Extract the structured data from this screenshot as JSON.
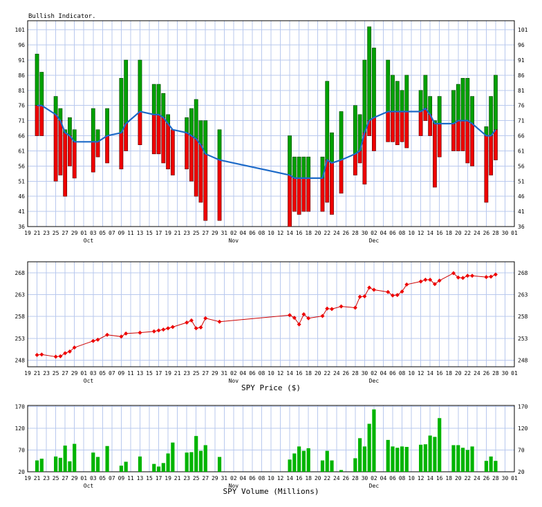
{
  "chart_data": [
    {
      "type": "bar",
      "title": "Bullish Indicator.",
      "ylim": [
        36,
        104
      ],
      "yticks": [
        36,
        41,
        46,
        51,
        56,
        61,
        66,
        71,
        76,
        81,
        86,
        91,
        96,
        101
      ],
      "x_tick_labels": [
        "19",
        "21",
        "23",
        "25",
        "27",
        "29",
        "01",
        "03",
        "05",
        "07",
        "09",
        "11",
        "13",
        "15",
        "17",
        "19",
        "21",
        "23",
        "25",
        "27",
        "29",
        "31",
        "02",
        "04",
        "06",
        "08",
        "10",
        "12",
        "14",
        "16",
        "18",
        "20",
        "22",
        "24",
        "26",
        "28",
        "30",
        "02",
        "04",
        "06",
        "08",
        "10",
        "12",
        "14",
        "16",
        "18",
        "20",
        "22",
        "24",
        "26",
        "28",
        "30",
        "01"
      ],
      "month_labels": [
        {
          "label": "Oct",
          "day": 13
        },
        {
          "label": "Nov",
          "day": 44
        },
        {
          "label": "Dec",
          "day": 74
        }
      ],
      "series": [
        {
          "name": "bars",
          "values": [
            {
              "d": 2,
              "lo": 66,
              "hi": 93
            },
            {
              "d": 3,
              "lo": 66,
              "hi": 87
            },
            {
              "d": 6,
              "lo": 51,
              "hi": 79
            },
            {
              "d": 7,
              "lo": 53,
              "hi": 75
            },
            {
              "d": 8,
              "lo": 46,
              "hi": 68
            },
            {
              "d": 9,
              "lo": 56,
              "hi": 72
            },
            {
              "d": 10,
              "lo": 52,
              "hi": 68
            },
            {
              "d": 14,
              "lo": 54,
              "hi": 75
            },
            {
              "d": 15,
              "lo": 59,
              "hi": 68
            },
            {
              "d": 17,
              "lo": 57,
              "hi": 75
            },
            {
              "d": 20,
              "lo": 55,
              "hi": 85
            },
            {
              "d": 21,
              "lo": 61,
              "hi": 91
            },
            {
              "d": 24,
              "lo": 63,
              "hi": 91
            },
            {
              "d": 27,
              "lo": 60,
              "hi": 83
            },
            {
              "d": 28,
              "lo": 60,
              "hi": 83
            },
            {
              "d": 29,
              "lo": 57,
              "hi": 80
            },
            {
              "d": 30,
              "lo": 55,
              "hi": 73
            },
            {
              "d": 31,
              "lo": 53,
              "hi": 68
            },
            {
              "d": 34,
              "lo": 55,
              "hi": 72
            },
            {
              "d": 35,
              "lo": 51,
              "hi": 75
            },
            {
              "d": 36,
              "lo": 46,
              "hi": 78
            },
            {
              "d": 37,
              "lo": 44,
              "hi": 71
            },
            {
              "d": 38,
              "lo": 38,
              "hi": 71
            },
            {
              "d": 41,
              "lo": 38,
              "hi": 68
            },
            {
              "d": 56,
              "lo": 36,
              "hi": 66
            },
            {
              "d": 57,
              "lo": 41,
              "hi": 59
            },
            {
              "d": 58,
              "lo": 40,
              "hi": 59
            },
            {
              "d": 59,
              "lo": 41,
              "hi": 59
            },
            {
              "d": 60,
              "lo": 41,
              "hi": 59
            },
            {
              "d": 63,
              "lo": 41,
              "hi": 59
            },
            {
              "d": 64,
              "lo": 44,
              "hi": 84
            },
            {
              "d": 65,
              "lo": 40,
              "hi": 67
            },
            {
              "d": 67,
              "lo": 47,
              "hi": 74
            },
            {
              "d": 70,
              "lo": 53,
              "hi": 76
            },
            {
              "d": 71,
              "lo": 57,
              "hi": 73
            },
            {
              "d": 72,
              "lo": 50,
              "hi": 91
            },
            {
              "d": 73,
              "lo": 66,
              "hi": 102
            },
            {
              "d": 74,
              "lo": 61,
              "hi": 95
            },
            {
              "d": 77,
              "lo": 64,
              "hi": 91
            },
            {
              "d": 78,
              "lo": 64,
              "hi": 86
            },
            {
              "d": 79,
              "lo": 63,
              "hi": 84
            },
            {
              "d": 80,
              "lo": 64,
              "hi": 81
            },
            {
              "d": 81,
              "lo": 62,
              "hi": 86
            },
            {
              "d": 84,
              "lo": 66,
              "hi": 81
            },
            {
              "d": 85,
              "lo": 71,
              "hi": 86
            },
            {
              "d": 86,
              "lo": 66,
              "hi": 79
            },
            {
              "d": 87,
              "lo": 49,
              "hi": 71
            },
            {
              "d": 88,
              "lo": 59,
              "hi": 79
            },
            {
              "d": 91,
              "lo": 61,
              "hi": 81
            },
            {
              "d": 92,
              "lo": 61,
              "hi": 83
            },
            {
              "d": 93,
              "lo": 61,
              "hi": 85
            },
            {
              "d": 94,
              "lo": 57,
              "hi": 85
            },
            {
              "d": 95,
              "lo": 56,
              "hi": 79
            },
            {
              "d": 98,
              "lo": 44,
              "hi": 69
            },
            {
              "d": 99,
              "lo": 53,
              "hi": 79
            },
            {
              "d": 100,
              "lo": 58,
              "hi": 86
            }
          ]
        },
        {
          "name": "line",
          "values": [
            [
              2,
              76
            ],
            [
              3,
              76
            ],
            [
              6,
              73
            ],
            [
              7,
              71
            ],
            [
              8,
              67
            ],
            [
              9,
              66
            ],
            [
              10,
              64
            ],
            [
              14,
              64
            ],
            [
              15,
              64
            ],
            [
              17,
              66
            ],
            [
              20,
              67
            ],
            [
              21,
              70
            ],
            [
              24,
              74
            ],
            [
              27,
              73
            ],
            [
              28,
              73
            ],
            [
              29,
              72
            ],
            [
              30,
              70
            ],
            [
              31,
              68
            ],
            [
              34,
              67
            ],
            [
              35,
              66
            ],
            [
              36,
              65
            ],
            [
              37,
              63
            ],
            [
              38,
              60
            ],
            [
              41,
              58
            ],
            [
              56,
              53
            ],
            [
              57,
              52
            ],
            [
              58,
              52
            ],
            [
              59,
              52
            ],
            [
              60,
              52
            ],
            [
              63,
              52
            ],
            [
              64,
              58
            ],
            [
              65,
              57
            ],
            [
              67,
              58
            ],
            [
              70,
              60
            ],
            [
              71,
              61
            ],
            [
              72,
              67
            ],
            [
              73,
              71
            ],
            [
              74,
              72
            ],
            [
              77,
              74
            ],
            [
              78,
              74
            ],
            [
              79,
              74
            ],
            [
              80,
              74
            ],
            [
              81,
              74
            ],
            [
              84,
              74
            ],
            [
              85,
              75
            ],
            [
              86,
              73
            ],
            [
              87,
              70
            ],
            [
              88,
              70
            ],
            [
              91,
              70
            ],
            [
              92,
              71
            ],
            [
              93,
              71
            ],
            [
              94,
              71
            ],
            [
              95,
              70
            ],
            [
              98,
              66
            ],
            [
              99,
              66
            ],
            [
              100,
              68
            ]
          ]
        }
      ]
    },
    {
      "type": "line",
      "xlabel": "SPY Price ($)",
      "ylim": [
        246.5,
        270.5
      ],
      "yticks": [
        248,
        253,
        258,
        263,
        268
      ],
      "series": [
        {
          "name": "",
          "values": [
            [
              2,
              249.2
            ],
            [
              3,
              249.3
            ],
            [
              6,
              248.8
            ],
            [
              7,
              248.9
            ],
            [
              8,
              249.6
            ],
            [
              9,
              250.0
            ],
            [
              10,
              250.9
            ],
            [
              14,
              252.4
            ],
            [
              15,
              252.7
            ],
            [
              17,
              253.8
            ],
            [
              20,
              253.4
            ],
            [
              21,
              254.1
            ],
            [
              24,
              254.3
            ],
            [
              27,
              254.6
            ],
            [
              28,
              254.8
            ],
            [
              29,
              255.0
            ],
            [
              30,
              255.3
            ],
            [
              31,
              255.6
            ],
            [
              34,
              256.6
            ],
            [
              35,
              257.1
            ],
            [
              36,
              255.3
            ],
            [
              37,
              255.5
            ],
            [
              38,
              257.6
            ],
            [
              41,
              256.8
            ],
            [
              56,
              258.3
            ],
            [
              57,
              257.7
            ],
            [
              58,
              256.2
            ],
            [
              59,
              258.5
            ],
            [
              60,
              257.6
            ],
            [
              63,
              258.1
            ],
            [
              64,
              259.8
            ],
            [
              65,
              259.7
            ],
            [
              67,
              260.3
            ],
            [
              70,
              260.0
            ],
            [
              71,
              262.5
            ],
            [
              72,
              262.6
            ],
            [
              73,
              264.6
            ],
            [
              74,
              264.1
            ],
            [
              77,
              263.6
            ],
            [
              78,
              262.8
            ],
            [
              79,
              262.9
            ],
            [
              80,
              263.7
            ],
            [
              81,
              265.3
            ],
            [
              84,
              266.0
            ],
            [
              85,
              266.4
            ],
            [
              86,
              266.4
            ],
            [
              87,
              265.4
            ],
            [
              88,
              266.2
            ],
            [
              91,
              267.9
            ],
            [
              92,
              266.9
            ],
            [
              93,
              266.8
            ],
            [
              94,
              267.3
            ],
            [
              95,
              267.3
            ],
            [
              98,
              267.0
            ],
            [
              99,
              267.1
            ],
            [
              100,
              267.6
            ]
          ]
        }
      ]
    },
    {
      "type": "bar",
      "xlabel": "SPY Volume (Millions)",
      "ylim": [
        20,
        172
      ],
      "yticks": [
        20,
        70,
        120,
        170
      ],
      "series": [
        {
          "name": "",
          "values": [
            [
              2,
              46
            ],
            [
              3,
              50
            ],
            [
              6,
              55
            ],
            [
              7,
              52
            ],
            [
              8,
              80
            ],
            [
              9,
              44
            ],
            [
              10,
              84
            ],
            [
              14,
              64
            ],
            [
              15,
              54
            ],
            [
              17,
              79
            ],
            [
              20,
              34
            ],
            [
              21,
              43
            ],
            [
              24,
              55
            ],
            [
              27,
              38
            ],
            [
              28,
              32
            ],
            [
              29,
              40
            ],
            [
              30,
              62
            ],
            [
              31,
              87
            ],
            [
              34,
              64
            ],
            [
              35,
              65
            ],
            [
              36,
              102
            ],
            [
              37,
              68
            ],
            [
              38,
              81
            ],
            [
              41,
              54
            ],
            [
              56,
              48
            ],
            [
              57,
              62
            ],
            [
              58,
              78
            ],
            [
              59,
              68
            ],
            [
              60,
              74
            ],
            [
              63,
              46
            ],
            [
              64,
              68
            ],
            [
              65,
              46
            ],
            [
              67,
              24
            ],
            [
              70,
              51
            ],
            [
              71,
              97
            ],
            [
              72,
              78
            ],
            [
              73,
              130
            ],
            [
              74,
              163
            ],
            [
              77,
              93
            ],
            [
              78,
              78
            ],
            [
              79,
              75
            ],
            [
              80,
              78
            ],
            [
              81,
              77
            ],
            [
              84,
              82
            ],
            [
              85,
              83
            ],
            [
              86,
              103
            ],
            [
              87,
              100
            ],
            [
              88,
              143
            ],
            [
              91,
              81
            ],
            [
              92,
              81
            ],
            [
              93,
              75
            ],
            [
              94,
              70
            ],
            [
              95,
              78
            ],
            [
              98,
              45
            ],
            [
              99,
              55
            ],
            [
              100,
              45
            ]
          ]
        }
      ]
    }
  ]
}
